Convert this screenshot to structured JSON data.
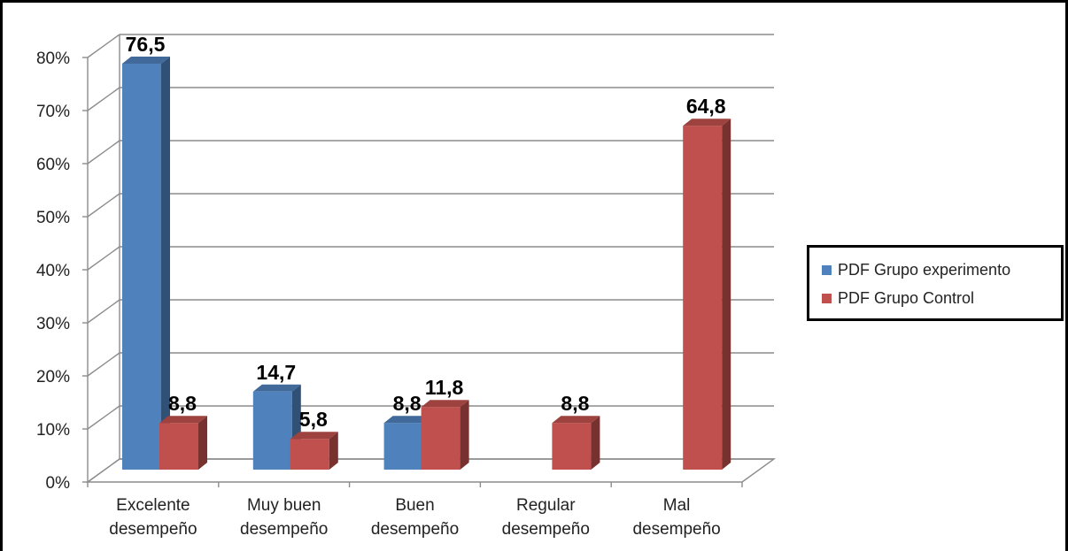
{
  "chart_data": {
    "type": "bar",
    "categories": [
      [
        "Excelente",
        "desempeño"
      ],
      [
        "Muy buen",
        "desempeño"
      ],
      [
        "Buen",
        "desempeño"
      ],
      [
        "Regular",
        "desempeño"
      ],
      [
        "Mal",
        "desempeño"
      ]
    ],
    "series": [
      {
        "name": "PDF Grupo experimento",
        "color": "#4f81bd",
        "values": [
          76.5,
          14.7,
          8.8,
          null,
          null
        ],
        "labels": [
          "76,5",
          "14,7",
          "8,8",
          null,
          null
        ]
      },
      {
        "name": "PDF Grupo Control",
        "color": "#c0504d",
        "values": [
          8.8,
          5.8,
          11.8,
          8.8,
          64.8
        ],
        "labels": [
          "8,8",
          "5,8",
          "11,8",
          "8,8",
          "64,8"
        ]
      }
    ],
    "y_ticks": [
      "0%",
      "10%",
      "20%",
      "30%",
      "40%",
      "50%",
      "60%",
      "70%",
      "80%"
    ],
    "ylim": [
      0,
      80
    ],
    "grid": true,
    "legend_position": "right",
    "style": "3d-clustered-column"
  }
}
